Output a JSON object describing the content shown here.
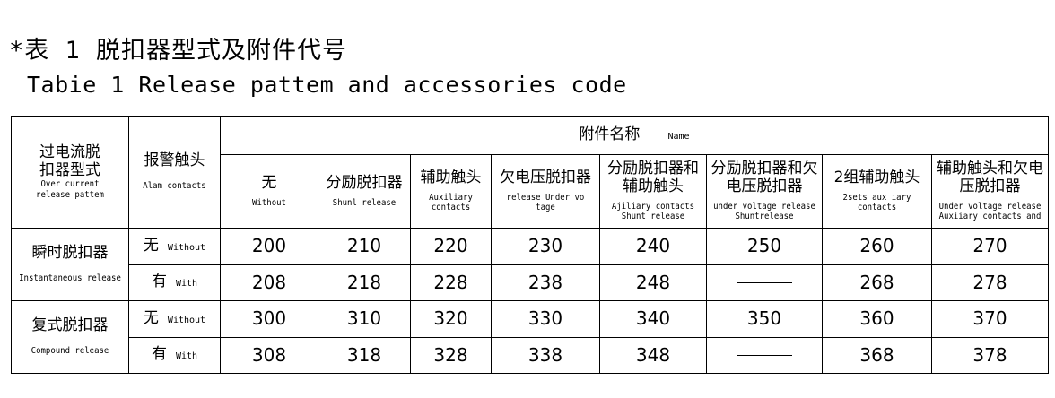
{
  "title_cn": "*表 1 脱扣器型式及附件代号",
  "title_en": "Tabie 1 Release pattem and accessories code",
  "header": {
    "col1_cn": "过电流脱扣器型式",
    "col1_en": "Over current release pattem",
    "col2_cn": "报警触头",
    "col2_en": "Alam contacts",
    "group_cn": "附件名称",
    "group_en": "Name",
    "accessories": [
      {
        "cn": "无",
        "en": "Without"
      },
      {
        "cn": "分励脱扣器",
        "en": "Shunl release"
      },
      {
        "cn": "辅助触头",
        "en": "Auxiliary contacts"
      },
      {
        "cn": "欠电压脱扣器",
        "en": "release Under vo tage"
      },
      {
        "cn": "分励脱扣器和辅助触头",
        "en": "Ajiliary contacts Shunt release"
      },
      {
        "cn": "分励脱扣器和欠电压脱扣器",
        "en": "under voltage release Shuntrelease"
      },
      {
        "cn": "2组辅助触头",
        "en": "2sets aux iary contacts"
      },
      {
        "cn": "辅助触头和欠电压脱扣器",
        "en": "Under voltage release Auxiiary contacts and"
      }
    ]
  },
  "groups": [
    {
      "cn": "瞬时脱扣器",
      "en": "Instantaneous release",
      "rows": [
        {
          "alarm_cn": "无",
          "alarm_en": "Without",
          "codes": [
            "200",
            "210",
            "220",
            "230",
            "240",
            "250",
            "260",
            "270"
          ]
        },
        {
          "alarm_cn": "有",
          "alarm_en": "With",
          "codes": [
            "208",
            "218",
            "228",
            "238",
            "248",
            "—",
            "268",
            "278"
          ]
        }
      ]
    },
    {
      "cn": "复式脱扣器",
      "en": "Compound release",
      "rows": [
        {
          "alarm_cn": "无",
          "alarm_en": "Without",
          "codes": [
            "300",
            "310",
            "320",
            "330",
            "340",
            "350",
            "360",
            "370"
          ]
        },
        {
          "alarm_cn": "有",
          "alarm_en": "With",
          "codes": [
            "308",
            "318",
            "328",
            "338",
            "348",
            "—",
            "368",
            "378"
          ]
        }
      ]
    }
  ]
}
